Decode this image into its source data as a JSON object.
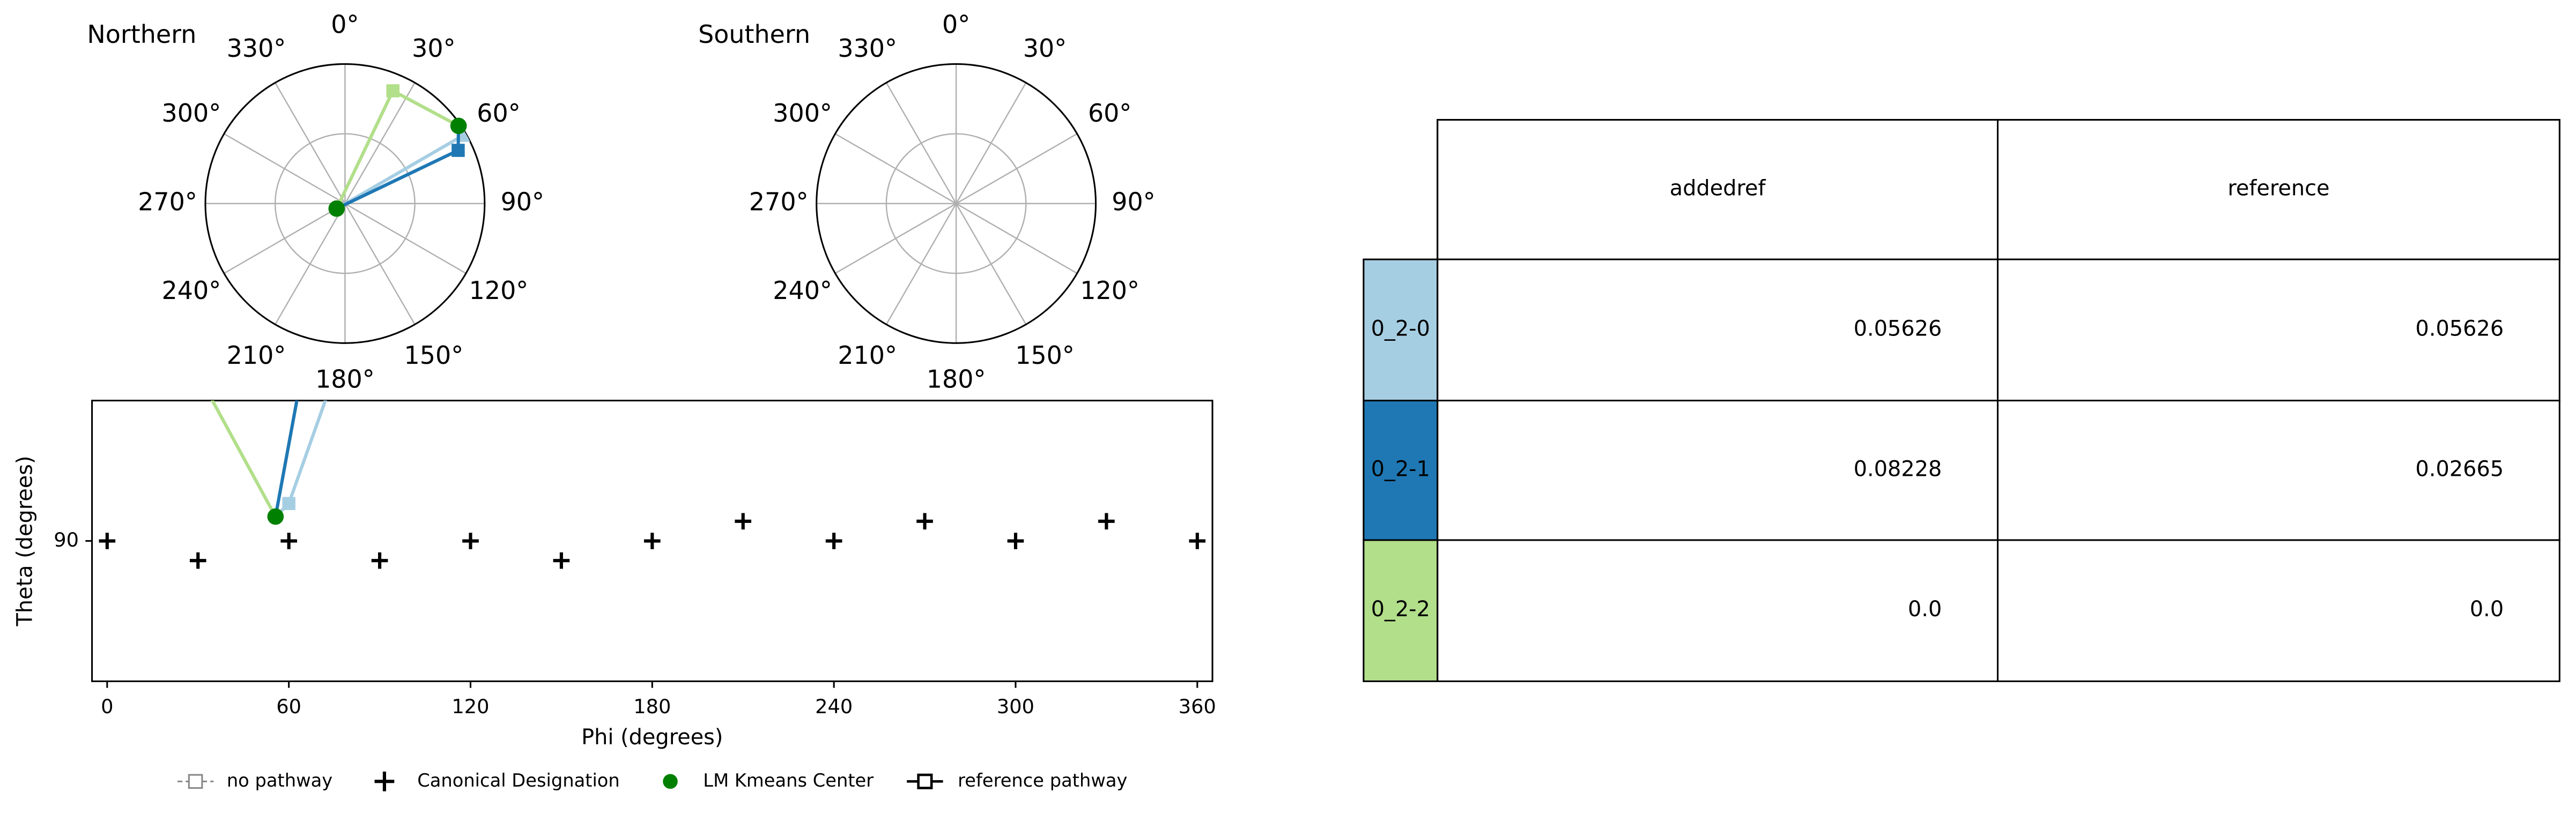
{
  "pathways": [
    {
      "name": "0_2-0",
      "color": "#a6cee3",
      "phi": [
        239,
        60,
        55.6
      ],
      "theta": [
        6.3,
        88,
        88.7
      ]
    },
    {
      "name": "0_2-1",
      "color": "#1f78b4",
      "phi": [
        239,
        64.8,
        55.6
      ],
      "theta": [
        6.3,
        80.6,
        88.7
      ]
    },
    {
      "name": "0_2-2",
      "color": "#b2df8a",
      "phi": [
        239,
        23,
        55.6
      ],
      "theta": [
        6.3,
        79,
        88.7
      ]
    }
  ],
  "kmeans": {
    "name": "LM Kmeans Center",
    "color": "#008000",
    "phi": [
      239,
      55.6
    ],
    "theta": [
      6.3,
      88.7
    ]
  },
  "chart_data": [
    {
      "type": "polar",
      "title": "Northern",
      "rlim": [
        0,
        90
      ],
      "rgrid": [
        45
      ],
      "angleticks": [
        {
          "value": 0,
          "label": "0°"
        },
        {
          "value": 30,
          "label": "30°"
        },
        {
          "value": 60,
          "label": "60°"
        },
        {
          "value": 90,
          "label": "90°"
        },
        {
          "value": 120,
          "label": "120°"
        },
        {
          "value": 150,
          "label": "150°"
        },
        {
          "value": 180,
          "label": "180°"
        },
        {
          "value": 210,
          "label": "210°"
        },
        {
          "value": 240,
          "label": "240°"
        },
        {
          "value": 270,
          "label": "270°"
        },
        {
          "value": 300,
          "label": "300°"
        },
        {
          "value": 330,
          "label": "330°"
        }
      ],
      "show_data": true
    },
    {
      "type": "polar",
      "title": "Southern",
      "rlim": [
        0,
        90
      ],
      "rgrid": [
        45
      ],
      "angleticks": [
        {
          "value": 0,
          "label": "0°"
        },
        {
          "value": 30,
          "label": "30°"
        },
        {
          "value": 60,
          "label": "60°"
        },
        {
          "value": 90,
          "label": "90°"
        },
        {
          "value": 120,
          "label": "120°"
        },
        {
          "value": 150,
          "label": "150°"
        },
        {
          "value": 180,
          "label": "180°"
        },
        {
          "value": 210,
          "label": "210°"
        },
        {
          "value": 240,
          "label": "240°"
        },
        {
          "value": 270,
          "label": "270°"
        },
        {
          "value": 300,
          "label": "300°"
        },
        {
          "value": 330,
          "label": "330°"
        }
      ],
      "show_data": false
    },
    {
      "type": "scatter",
      "xlabel": "Phi (degrees)",
      "ylabel": "Theta (degrees)",
      "xlim": [
        -5,
        365
      ],
      "xticks": [
        0,
        60,
        120,
        180,
        240,
        300,
        360
      ],
      "ylim": [
        97.5,
        82.5
      ],
      "yticks": [
        90
      ],
      "canonical": {
        "name": "Canonical Designation",
        "color": "#000000",
        "x": [
          0,
          30,
          60,
          90,
          120,
          150,
          180,
          210,
          240,
          270,
          300,
          330,
          360
        ],
        "values": [
          90,
          91.05,
          90,
          91.05,
          90,
          91.05,
          90,
          88.95,
          90,
          88.95,
          90,
          88.95,
          90
        ]
      },
      "legend": [
        "no pathway",
        "Canonical Designation",
        "LM Kmeans Center",
        "reference pathway"
      ]
    }
  ],
  "table": {
    "columns": [
      "addedref",
      "reference"
    ],
    "rows": [
      [
        "0.05626",
        "0.05626"
      ],
      [
        "0.08228",
        "0.02665"
      ],
      [
        "0.0",
        "0.0"
      ]
    ]
  }
}
